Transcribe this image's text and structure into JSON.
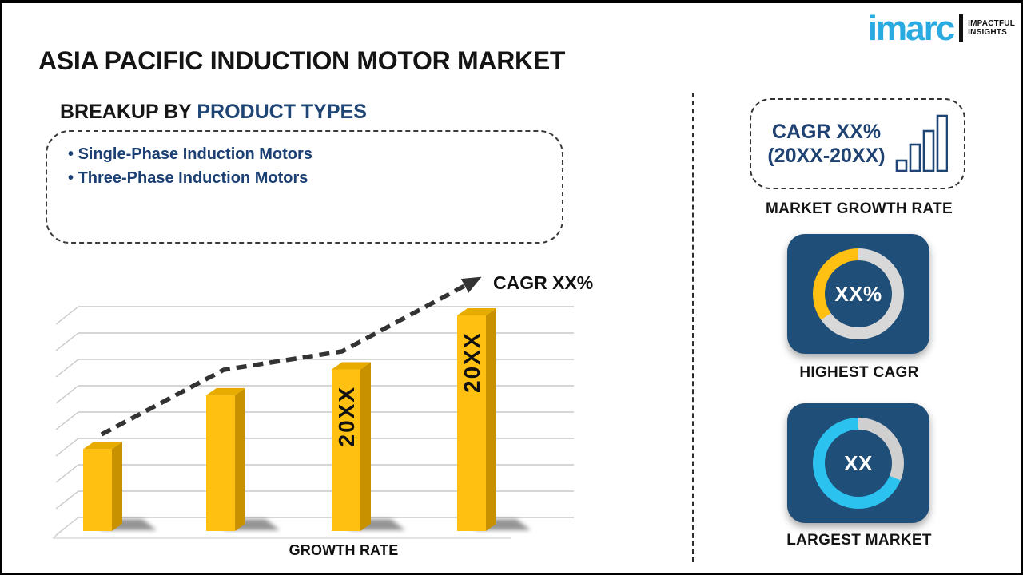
{
  "logo": {
    "wordmark": "imarc",
    "tagline_line1": "IMPACTFUL",
    "tagline_line2": "INSIGHTS",
    "brand_color": "#29ABE2"
  },
  "title": "ASIA PACIFIC INDUCTION MOTOR MARKET",
  "breakup": {
    "heading_prefix": "BREAKUP BY",
    "heading_highlight": "PRODUCT TYPES",
    "items": [
      "Single-Phase Induction Motors",
      "Three-Phase Induction Motors"
    ]
  },
  "chart_data": {
    "type": "bar",
    "title": "",
    "categories": [
      "",
      "",
      "20XX",
      "20XX"
    ],
    "values": [
      38,
      63,
      75,
      100
    ],
    "value_note": "relative bar heights, percent of tallest bar (placeholder chart)",
    "bar_color": "#FFC011",
    "bar_top_color": "#E8AB00",
    "bar_side_color": "#C79100",
    "trend_label": "CAGR XX%",
    "trend_style": "dashed black rising arrow",
    "xlabel": "GROWTH RATE",
    "ylabel": "",
    "grid": true,
    "legend": false
  },
  "right_panel": {
    "growth_card": {
      "line1": "CAGR XX%",
      "line2": "(20XX-20XX)",
      "caption": "MARKET GROWTH RATE",
      "icon_color": "#1F4575"
    },
    "highest_cagr": {
      "value": "XX%",
      "caption": "HIGHEST CAGR",
      "tile_color": "#1F4E78",
      "ring_main": "#FFC013",
      "ring_rest": "#D8D8D8",
      "fraction_deg": 125
    },
    "largest_market": {
      "value": "XX",
      "caption": "LARGEST MARKET",
      "tile_color": "#1F4E78",
      "ring_main": "#2BC2F0",
      "ring_rest": "#CFCFCF",
      "fraction_deg": 248
    }
  }
}
